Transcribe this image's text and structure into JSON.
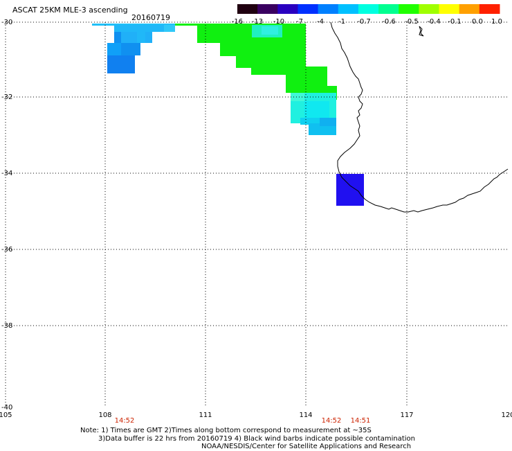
{
  "header": {
    "title": "ASCAT 25KM MLE-3 ascending",
    "date": "20160719"
  },
  "colorbar": {
    "labels": [
      "-16",
      "-13",
      "-10",
      "-7",
      "-4",
      "-1",
      "-0.7",
      "-0.6",
      "-0.5",
      "-0.4",
      "-0.1",
      "0.0",
      "1.0"
    ],
    "colors": [
      "#200010",
      "#3a0060",
      "#2a00c0",
      "#0030ff",
      "#0080ff",
      "#00c0ff",
      "#00ffe0",
      "#00ff90",
      "#20ff00",
      "#a0ff00",
      "#ffff00",
      "#ffa000",
      "#ff2000"
    ]
  },
  "axes": {
    "lat_labels": [
      "-30",
      "-32",
      "-34",
      "-36",
      "-38",
      "-40"
    ],
    "lon_labels": [
      "105",
      "108",
      "111",
      "114",
      "117",
      "120"
    ]
  },
  "times": [
    {
      "label": "14:52"
    },
    {
      "label": "14:52"
    },
    {
      "label": "14:51"
    }
  ],
  "notes": {
    "line1": "Note: 1) Times are GMT 2)Times along bottom correspond to measurement at ~35S",
    "line2": "3)Data buffer is 22 hrs from 20160719 4) Black wind barbs indicate possible contamination",
    "line3": "NOAA/NESDIS/Center for Satellite Applications and Research"
  },
  "colors": {
    "cyan_blue": "#20b8f8",
    "blue": "#1078f0",
    "green": "#10f010",
    "cyan": "#20f0e0",
    "deep_blue": "#2010f0"
  }
}
